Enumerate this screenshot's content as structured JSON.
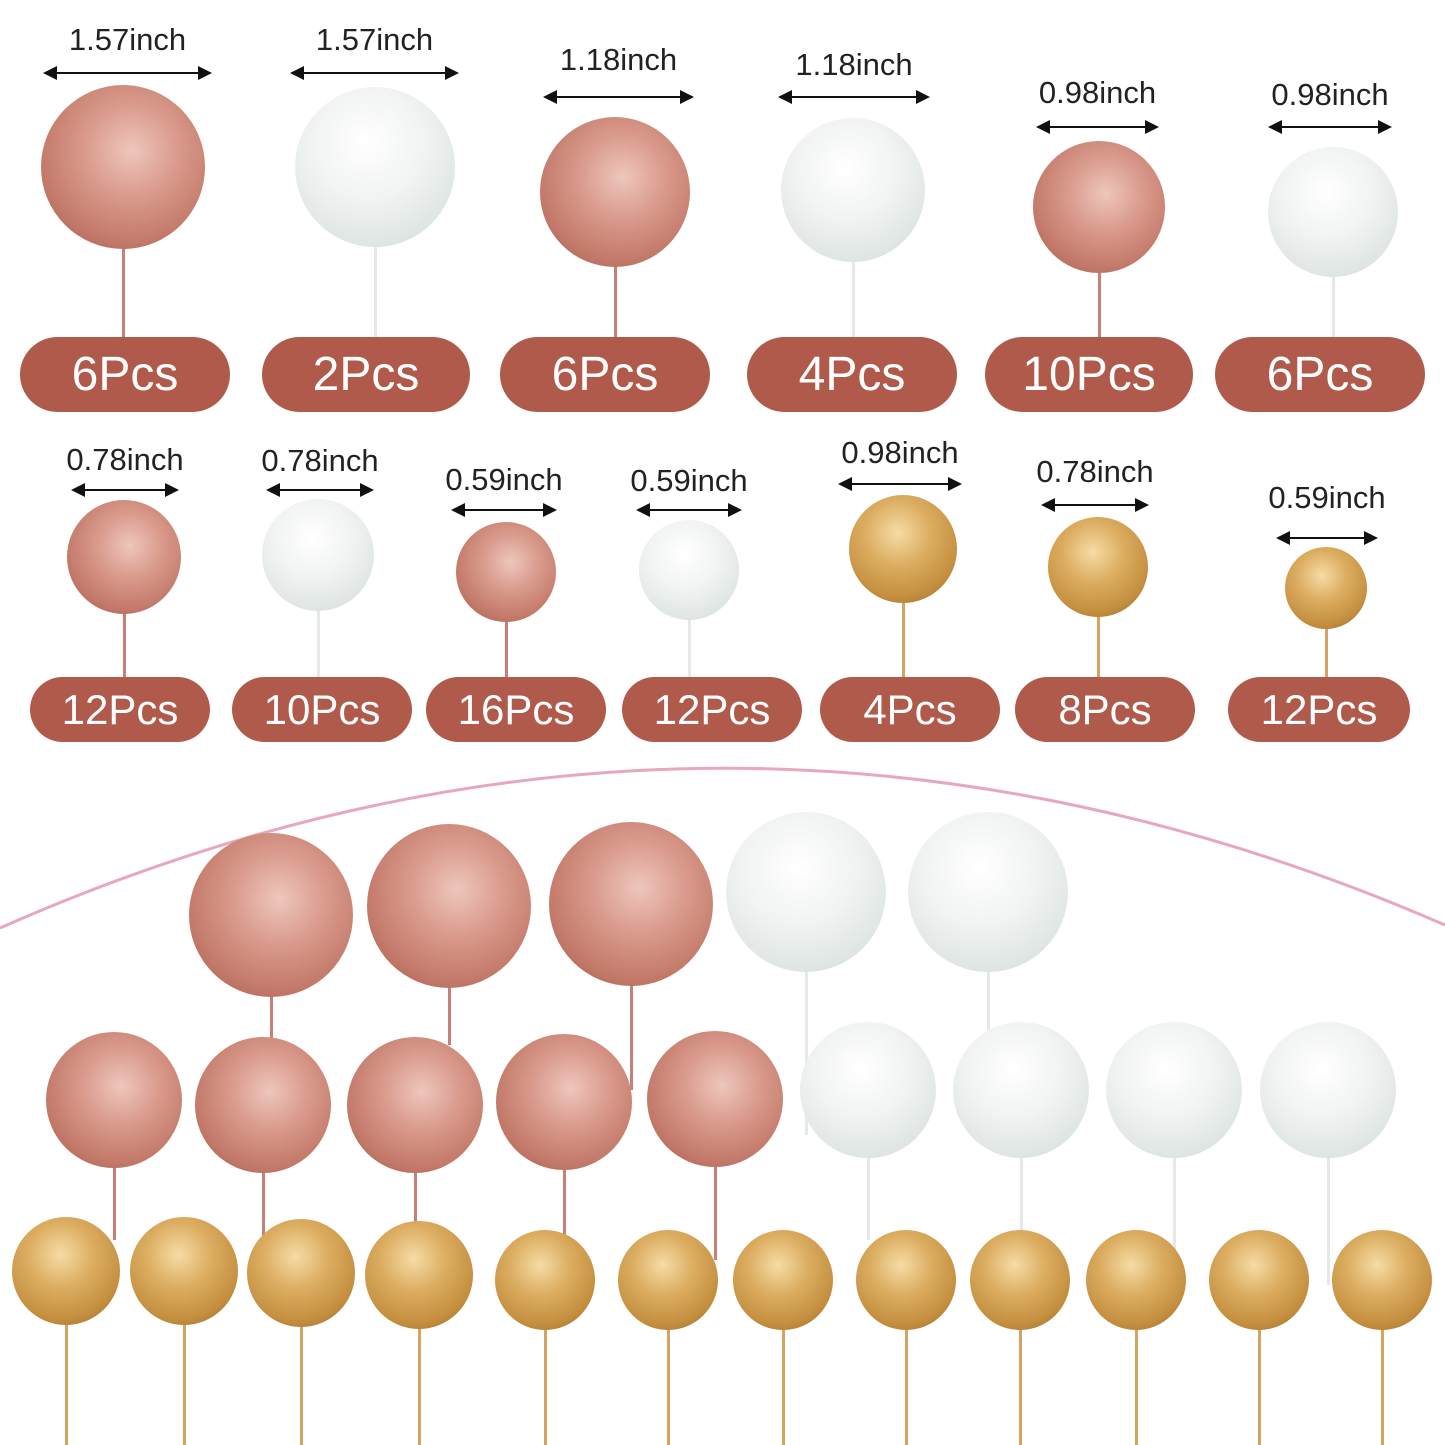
{
  "colors": {
    "badge": "#b05a4c",
    "rose_gold": "#d99a8c",
    "white": "#f1f4f2",
    "gold": "#dcae62",
    "arc": "#e8a8bb"
  },
  "items": [
    {
      "size": "1.57inch",
      "count": "6Pcs",
      "color": "rose-gold"
    },
    {
      "size": "1.57inch",
      "count": "2Pcs",
      "color": "white"
    },
    {
      "size": "1.18inch",
      "count": "6Pcs",
      "color": "rose-gold"
    },
    {
      "size": "1.18inch",
      "count": "4Pcs",
      "color": "white"
    },
    {
      "size": "0.98inch",
      "count": "10Pcs",
      "color": "rose-gold"
    },
    {
      "size": "0.98inch",
      "count": "6Pcs",
      "color": "white"
    },
    {
      "size": "0.78inch",
      "count": "12Pcs",
      "color": "rose-gold"
    },
    {
      "size": "0.78inch",
      "count": "10Pcs",
      "color": "white"
    },
    {
      "size": "0.59inch",
      "count": "16Pcs",
      "color": "rose-gold"
    },
    {
      "size": "0.59inch",
      "count": "12Pcs",
      "color": "white"
    },
    {
      "size": "0.98inch",
      "count": "4Pcs",
      "color": "gold"
    },
    {
      "size": "0.78inch",
      "count": "8Pcs",
      "color": "gold"
    },
    {
      "size": "0.59inch",
      "count": "12Pcs",
      "color": "gold"
    }
  ]
}
